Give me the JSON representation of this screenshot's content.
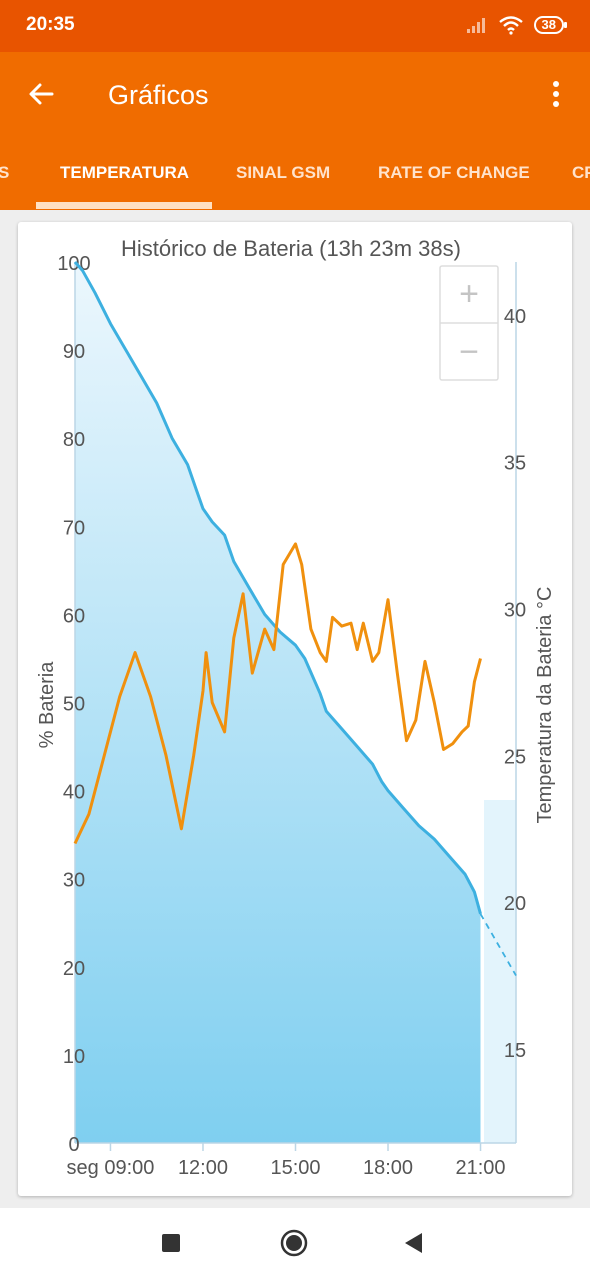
{
  "status_bar": {
    "time": "20:35",
    "battery": "38",
    "icons": [
      "signal-icon",
      "wifi-icon",
      "battery-icon"
    ]
  },
  "app_bar": {
    "title": "Gráficos",
    "back_icon": "arrow-left-icon",
    "menu_icon": "more-vert-icon"
  },
  "tabs": [
    {
      "label": "S",
      "selected": false
    },
    {
      "label": "TEMPERATURA",
      "selected": true
    },
    {
      "label": "SINAL GSM",
      "selected": false
    },
    {
      "label": "RATE OF CHANGE",
      "selected": false
    },
    {
      "label": "CP",
      "selected": false
    }
  ],
  "zoom": {
    "in_label": "+",
    "out_label": "−"
  },
  "colors": {
    "status_bar": "#e85400",
    "app_bar": "#f06c00",
    "battery_line": "#3db0e0",
    "temperature_line": "#f0900e"
  },
  "chart_data": {
    "type": "line",
    "title": "Histórico de Bateria (13h 23m 38s)",
    "ylabel_left": "% Bateria",
    "ylabel_right": "Temperatura da Bateria °C",
    "xlim": [
      7.85,
      22.15
    ],
    "ylim_left": [
      0,
      100
    ],
    "ylim_right": [
      11.8,
      41.8
    ],
    "x_ticks": [
      {
        "value": 9,
        "label": "seg 09:00"
      },
      {
        "value": 12,
        "label": "12:00"
      },
      {
        "value": 15,
        "label": "15:00"
      },
      {
        "value": 18,
        "label": "18:00"
      },
      {
        "value": 21,
        "label": "21:00"
      }
    ],
    "y_ticks_left": [
      0,
      10,
      20,
      30,
      40,
      50,
      60,
      70,
      80,
      90,
      100
    ],
    "y_ticks_right": [
      15,
      20,
      25,
      30,
      35,
      40
    ],
    "series": [
      {
        "axis": "left",
        "x": [
          7.85,
          8.1,
          8.5,
          9.0,
          9.5,
          10.0,
          10.5,
          11.0,
          11.5,
          11.8,
          12.0,
          12.3,
          12.7,
          13.0,
          13.5,
          14.0,
          14.5,
          15.0,
          15.3,
          15.8,
          16.0,
          16.5,
          17.0,
          17.5,
          17.8,
          18.0,
          18.5,
          19.0,
          19.5,
          20.0,
          20.5,
          20.8,
          21.0
        ],
        "values": [
          100,
          99,
          96.5,
          93,
          90,
          87,
          84,
          80,
          77,
          74,
          72,
          70.5,
          69,
          66,
          63,
          60,
          58,
          56.5,
          55,
          51,
          49,
          47,
          45,
          43,
          41,
          40,
          38,
          36,
          34.5,
          32.5,
          30.5,
          28.5,
          26
        ]
      },
      {
        "axis": "left",
        "name": "projection",
        "dashed": true,
        "x": [
          21.0,
          22.15
        ],
        "values": [
          26,
          19
        ]
      },
      {
        "axis": "right",
        "x": [
          7.85,
          8.3,
          8.8,
          9.3,
          9.8,
          10.3,
          10.8,
          11.3,
          11.7,
          12.0,
          12.1,
          12.3,
          12.7,
          13.0,
          13.3,
          13.6,
          14.0,
          14.3,
          14.6,
          15.0,
          15.2,
          15.5,
          15.8,
          16.0,
          16.2,
          16.5,
          16.8,
          17.0,
          17.2,
          17.5,
          17.7,
          18.0,
          18.3,
          18.6,
          18.9,
          19.2,
          19.5,
          19.8,
          20.1,
          20.4,
          20.6,
          20.8,
          21.0
        ],
        "values": [
          22,
          23,
          25,
          27,
          28.5,
          27,
          25,
          22.5,
          25,
          27.2,
          28.5,
          26.8,
          25.8,
          29,
          30.5,
          27.8,
          29.3,
          28.6,
          31.5,
          32.2,
          31.5,
          29.3,
          28.5,
          28.2,
          29.7,
          29.4,
          29.5,
          28.6,
          29.5,
          28.2,
          28.5,
          30.3,
          27.8,
          25.5,
          26.2,
          28.2,
          26.8,
          25.2,
          25.4,
          25.8,
          26.0,
          27.5,
          28.3
        ]
      }
    ],
    "grid": false,
    "legend": "none"
  }
}
